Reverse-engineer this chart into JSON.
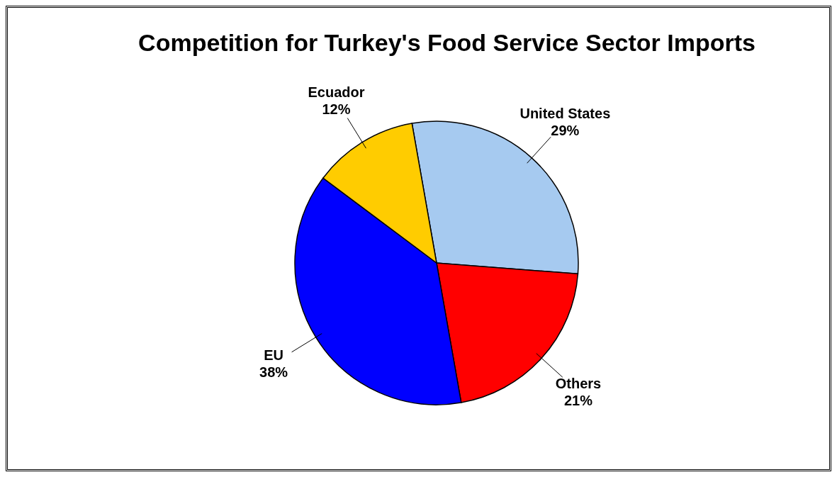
{
  "chart_data": {
    "type": "pie",
    "title": "Competition for Turkey's Food Service Sector Imports",
    "categories": [
      "United States",
      "Others",
      "EU",
      "Ecuador"
    ],
    "values": [
      29,
      21,
      38,
      12
    ],
    "value_labels": [
      "29%",
      "21%",
      "38%",
      "12%"
    ],
    "colors": [
      "#a6caf0",
      "#ff0000",
      "#0000ff",
      "#ffcc00"
    ],
    "legend": false
  }
}
